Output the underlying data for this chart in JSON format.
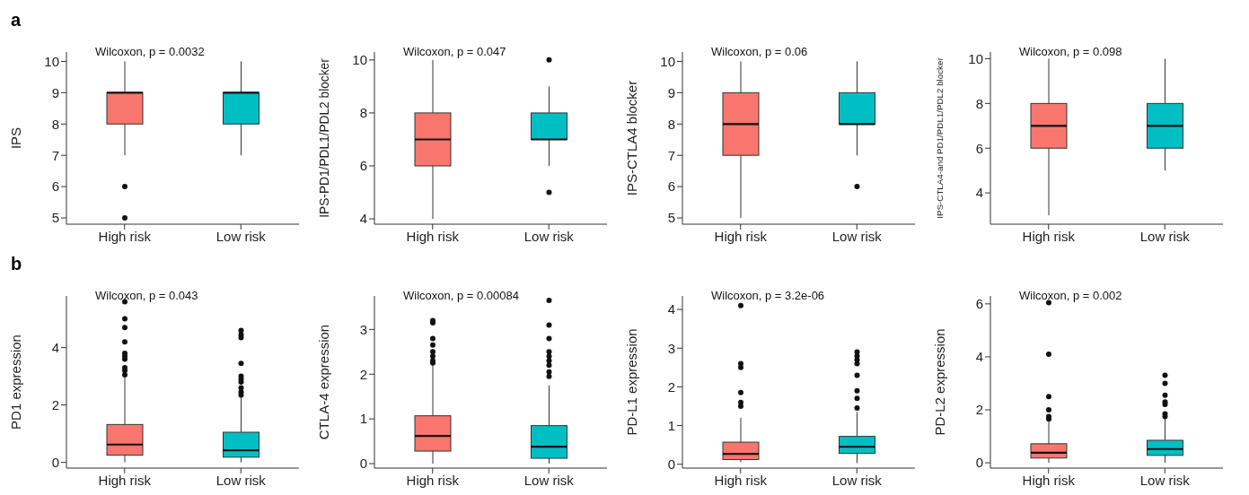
{
  "chart_data": [
    {
      "type": "box",
      "title": "a",
      "ylabel": "IPS",
      "annotations": [
        "Wilcoxon, p = 0.0032"
      ],
      "categories": [
        "High risk",
        "Low risk"
      ],
      "colors": [
        "#f8766d",
        "#00bfc4"
      ],
      "ylim": [
        4.8,
        10.3
      ],
      "yticks": [
        5,
        6,
        7,
        8,
        9,
        10
      ],
      "boxes": [
        {
          "low": 7,
          "q1": 8,
          "median": 9,
          "q3": 9,
          "high": 10,
          "outliers": [
            6,
            5
          ]
        },
        {
          "low": 7,
          "q1": 8,
          "median": 9,
          "q3": 9,
          "high": 10
        }
      ]
    },
    {
      "type": "box",
      "ylabel": "IPS-PD1/PDL1/PDL2 blocker",
      "annotations": [
        "Wilcoxon, p = 0.047"
      ],
      "categories": [
        "High risk",
        "Low risk"
      ],
      "colors": [
        "#f8766d",
        "#00bfc4"
      ],
      "ylim": [
        3.8,
        10.3
      ],
      "yticks": [
        4,
        6,
        8,
        10
      ],
      "boxes": [
        {
          "low": 4,
          "q1": 6,
          "median": 7,
          "q3": 8,
          "high": 10
        },
        {
          "low": 6,
          "q1": 7,
          "median": 7,
          "q3": 8,
          "high": 9,
          "outliers": [
            5,
            10
          ]
        }
      ]
    },
    {
      "type": "box",
      "ylabel": "IPS-CTLA4 blocker",
      "annotations": [
        "Wilcoxon, p = 0.06"
      ],
      "categories": [
        "High risk",
        "Low risk"
      ],
      "colors": [
        "#f8766d",
        "#00bfc4"
      ],
      "ylim": [
        4.8,
        10.3
      ],
      "yticks": [
        5,
        6,
        7,
        8,
        9,
        10
      ],
      "boxes": [
        {
          "low": 5,
          "q1": 7,
          "median": 8,
          "q3": 9,
          "high": 10
        },
        {
          "low": 7,
          "q1": 8,
          "median": 8,
          "q3": 9,
          "high": 10,
          "outliers": [
            6
          ]
        }
      ]
    },
    {
      "type": "box",
      "ylabel": "IPS-CTLA4-and PD1/PDL1/PDL2 blocker",
      "annotations": [
        "Wilcoxon, p = 0.098"
      ],
      "categories": [
        "High risk",
        "Low risk"
      ],
      "colors": [
        "#f8766d",
        "#00bfc4"
      ],
      "ylim": [
        2.6,
        10.3
      ],
      "yticks": [
        4,
        6,
        8,
        10
      ],
      "boxes": [
        {
          "low": 3,
          "q1": 6,
          "median": 7,
          "q3": 8,
          "high": 10
        },
        {
          "low": 5,
          "q1": 6,
          "median": 7,
          "q3": 8,
          "high": 10
        }
      ]
    },
    {
      "type": "box",
      "title": "b",
      "ylabel": "PD1 expression",
      "annotations": [
        "Wilcoxon, p = 0.043"
      ],
      "categories": [
        "High risk",
        "Low risk"
      ],
      "colors": [
        "#f8766d",
        "#00bfc4"
      ],
      "ylim": [
        -0.2,
        5.8
      ],
      "yticks": [
        0,
        2,
        4
      ],
      "boxes": [
        {
          "low": 0,
          "q1": 0.25,
          "median": 0.62,
          "q3": 1.32,
          "high": 2.95,
          "outliers": [
            3.05,
            3.2,
            3.3,
            3.6,
            3.7,
            3.8,
            4.2,
            4.7,
            5.0,
            5.6
          ]
        },
        {
          "low": 0,
          "q1": 0.18,
          "median": 0.42,
          "q3": 1.05,
          "high": 2.3,
          "outliers": [
            2.35,
            2.45,
            2.6,
            2.8,
            2.9,
            3.0,
            3.45,
            4.35,
            4.45,
            4.6
          ]
        }
      ]
    },
    {
      "type": "box",
      "ylabel": "CTLA-4 expression",
      "annotations": [
        "Wilcoxon, p = 0.00084"
      ],
      "categories": [
        "High risk",
        "Low risk"
      ],
      "colors": [
        "#f8766d",
        "#00bfc4"
      ],
      "ylim": [
        -0.1,
        3.75
      ],
      "yticks": [
        0,
        1,
        2,
        3
      ],
      "boxes": [
        {
          "low": 0,
          "q1": 0.28,
          "median": 0.62,
          "q3": 1.07,
          "high": 2.2,
          "outliers": [
            2.25,
            2.3,
            2.4,
            2.5,
            2.65,
            2.8,
            3.15,
            3.2
          ]
        },
        {
          "low": 0,
          "q1": 0.12,
          "median": 0.38,
          "q3": 0.85,
          "high": 1.75,
          "outliers": [
            1.95,
            2.05,
            2.2,
            2.3,
            2.4,
            2.5,
            2.8,
            3.1,
            3.65
          ]
        }
      ]
    },
    {
      "type": "box",
      "ylabel": "PD-L1 expression",
      "annotations": [
        "Wilcoxon, p = 3.2e-06"
      ],
      "categories": [
        "High risk",
        "Low risk"
      ],
      "colors": [
        "#f8766d",
        "#00bfc4"
      ],
      "ylim": [
        -0.1,
        4.35
      ],
      "yticks": [
        0,
        1,
        2,
        3,
        4
      ],
      "boxes": [
        {
          "low": 0.05,
          "q1": 0.12,
          "median": 0.27,
          "q3": 0.57,
          "high": 1.2,
          "outliers": [
            1.5,
            1.6,
            1.85,
            2.5,
            2.6,
            4.1
          ]
        },
        {
          "low": 0.03,
          "q1": 0.28,
          "median": 0.45,
          "q3": 0.72,
          "high": 1.35,
          "outliers": [
            1.45,
            1.7,
            1.9,
            2.3,
            2.6,
            2.7,
            2.8,
            2.9
          ]
        }
      ]
    },
    {
      "type": "box",
      "ylabel": "PD-L2 expression",
      "annotations": [
        "Wilcoxon, p = 0.002"
      ],
      "categories": [
        "High risk",
        "Low risk"
      ],
      "colors": [
        "#f8766d",
        "#00bfc4"
      ],
      "ylim": [
        -0.2,
        6.3
      ],
      "yticks": [
        0,
        2,
        4,
        6
      ],
      "boxes": [
        {
          "low": 0,
          "q1": 0.18,
          "median": 0.38,
          "q3": 0.72,
          "high": 1.55,
          "outliers": [
            1.65,
            1.75,
            2.0,
            2.5,
            4.1,
            6.05
          ]
        },
        {
          "low": 0,
          "q1": 0.28,
          "median": 0.52,
          "q3": 0.85,
          "high": 1.7,
          "outliers": [
            1.75,
            1.85,
            2.2,
            2.3,
            2.55,
            3.0,
            3.3
          ]
        }
      ]
    }
  ]
}
